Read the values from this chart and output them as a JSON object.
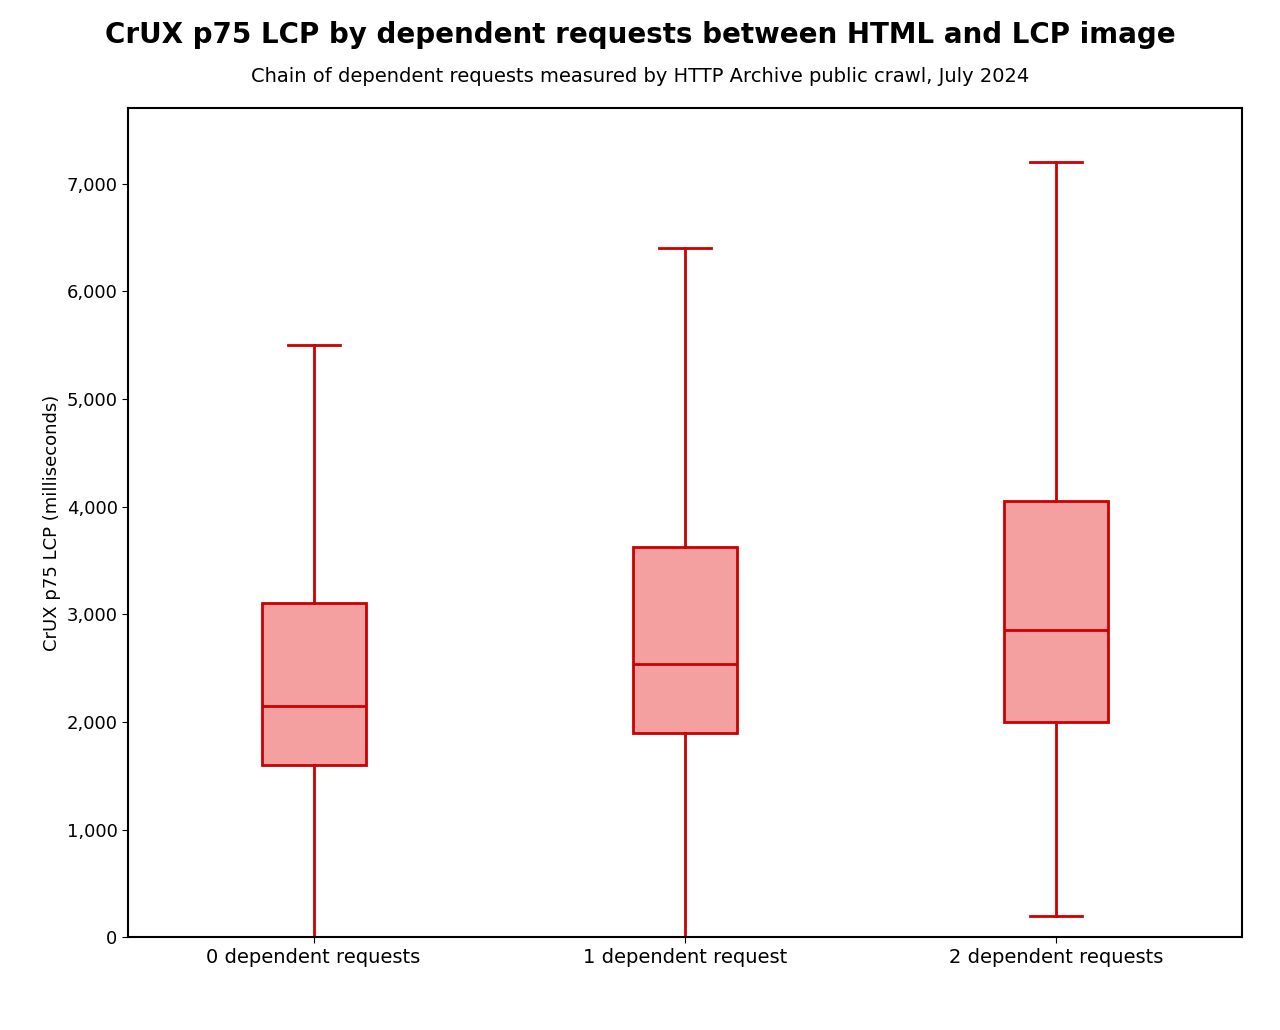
{
  "title": "CrUX p75 LCP by dependent requests between HTML and LCP image",
  "subtitle": "Chain of dependent requests measured by HTTP Archive public crawl, July 2024",
  "ylabel": "CrUX p75 LCP (milliseconds)",
  "categories": [
    "0 dependent requests",
    "1 dependent request",
    "2 dependent requests"
  ],
  "boxplot_stats": [
    {
      "whislo": 0,
      "q1": 1600,
      "med": 2150,
      "q3": 3100,
      "whishi": 5500
    },
    {
      "whislo": 0,
      "q1": 1900,
      "med": 2540,
      "q3": 3620,
      "whishi": 6400
    },
    {
      "whislo": 200,
      "q1": 2000,
      "med": 2850,
      "q3": 4050,
      "whishi": 7200
    }
  ],
  "box_facecolor": "#f4a0a0",
  "box_edgecolor": "#cc0000",
  "median_color": "#cc0000",
  "whisker_color": "#cc0000",
  "cap_color": "#cc0000",
  "ylim": [
    0,
    7700
  ],
  "yticks": [
    0,
    1000,
    2000,
    3000,
    4000,
    5000,
    6000,
    7000
  ],
  "background_color": "#ffffff",
  "title_fontsize": 20,
  "subtitle_fontsize": 14,
  "ylabel_fontsize": 13,
  "xlabel_fontsize": 14,
  "tick_fontsize": 13,
  "box_width": 0.28,
  "linewidth": 2.0
}
